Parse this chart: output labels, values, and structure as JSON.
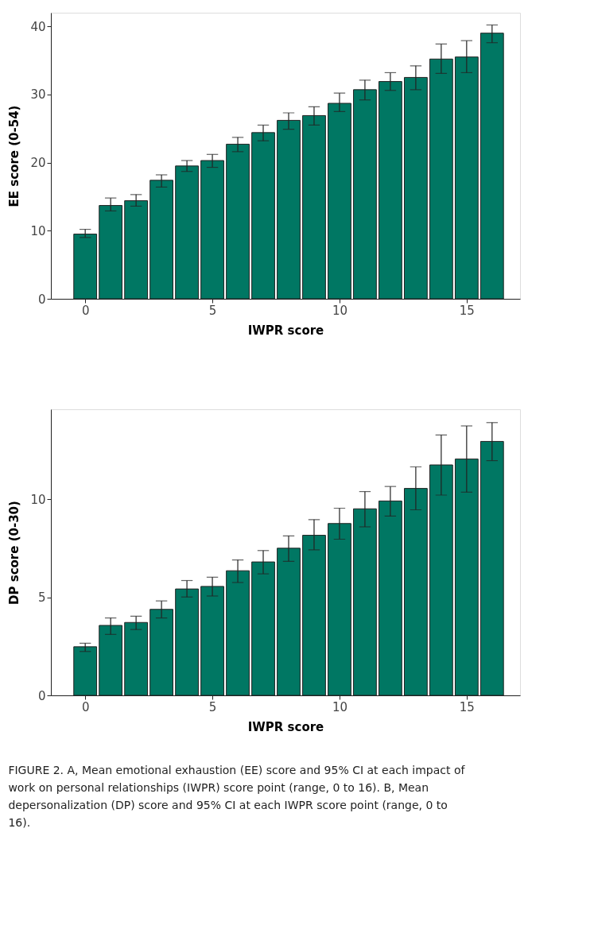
{
  "chart_data": [
    {
      "type": "bar",
      "x": [
        0,
        1,
        2,
        3,
        4,
        5,
        6,
        7,
        8,
        9,
        10,
        11,
        12,
        13,
        14,
        15,
        16
      ],
      "xlabel": "IWPR score",
      "ylabel": "EE score (0-54)",
      "color": "#007763",
      "values": [
        9.5,
        13.7,
        14.4,
        17.4,
        19.5,
        20.3,
        22.7,
        24.4,
        26.2,
        26.9,
        28.7,
        30.7,
        31.9,
        32.5,
        35.2,
        35.5,
        39.0
      ],
      "errors": [
        [
          9.0,
          10.2
        ],
        [
          12.9,
          14.8
        ],
        [
          13.6,
          15.3
        ],
        [
          16.4,
          18.2
        ],
        [
          18.7,
          20.3
        ],
        [
          19.3,
          21.2
        ],
        [
          21.6,
          23.7
        ],
        [
          23.2,
          25.5
        ],
        [
          24.9,
          27.3
        ],
        [
          25.5,
          28.2
        ],
        [
          27.5,
          30.2
        ],
        [
          29.2,
          32.1
        ],
        [
          30.6,
          33.2
        ],
        [
          30.7,
          34.2
        ],
        [
          33.1,
          37.4
        ],
        [
          33.2,
          37.9
        ],
        [
          37.6,
          40.2
        ]
      ],
      "xlim": [
        -1.35,
        17.1
      ],
      "xticks": [
        0,
        5,
        10,
        15
      ],
      "ylim": [
        0,
        42
      ],
      "yticks": [
        0,
        10,
        20,
        30,
        40
      ],
      "grid": false
    },
    {
      "type": "bar",
      "x": [
        0,
        1,
        2,
        3,
        4,
        5,
        6,
        7,
        8,
        9,
        10,
        11,
        12,
        13,
        14,
        15,
        16
      ],
      "xlabel": "IWPR score",
      "ylabel": "DP score (0-30)",
      "color": "#007763",
      "values": [
        2.48,
        3.57,
        3.72,
        4.39,
        5.43,
        5.56,
        6.36,
        6.81,
        7.51,
        8.17,
        8.77,
        9.52,
        9.92,
        10.56,
        11.76,
        12.06,
        12.96
      ],
      "errors": [
        [
          2.24,
          2.66
        ],
        [
          3.11,
          3.95
        ],
        [
          3.36,
          4.04
        ],
        [
          3.95,
          4.82
        ],
        [
          5.02,
          5.86
        ],
        [
          5.07,
          6.03
        ],
        [
          5.76,
          6.91
        ],
        [
          6.2,
          7.39
        ],
        [
          6.84,
          8.14
        ],
        [
          7.43,
          8.97
        ],
        [
          7.97,
          9.55
        ],
        [
          8.6,
          10.4
        ],
        [
          9.15,
          10.66
        ],
        [
          9.47,
          11.66
        ],
        [
          10.22,
          13.29
        ],
        [
          10.37,
          13.75
        ],
        [
          11.98,
          13.92
        ]
      ],
      "xlim": [
        -1.35,
        17.1
      ],
      "xticks": [
        0,
        5,
        10,
        15
      ],
      "ylim": [
        0,
        14.6
      ],
      "yticks": [
        0,
        5,
        10
      ],
      "grid": false,
      "annotations": [
        "FIGURE 2. A, Mean emotional exhaustion (EE) score and 95% CI at each impact of work on personal relationships (IWPR) score point (range, 0 to 16). B, Mean depersonalization (DP) score and 95% CI at each IWPR score point (range, 0 to 16)."
      ]
    }
  ]
}
